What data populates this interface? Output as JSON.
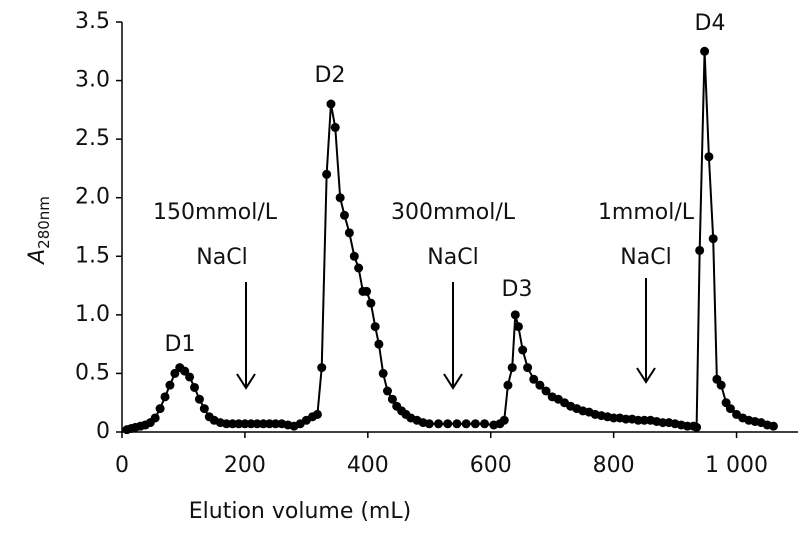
{
  "chart_data": {
    "type": "line",
    "x_label": "Elution volume (mL)",
    "y_label": {
      "symbol": "A",
      "subscript": "280nm"
    },
    "xlim": [
      0,
      1100
    ],
    "xticks": [
      0,
      200,
      400,
      600,
      800,
      {
        "value": 1000,
        "label": "1 000"
      }
    ],
    "ylim": [
      0,
      3.5
    ],
    "yticks": [
      0,
      0.5,
      {
        "value": 1,
        "label": "1.0"
      },
      1.5,
      {
        "value": 2,
        "label": "2.0"
      },
      2.5,
      {
        "value": 3,
        "label": "3.0"
      },
      3.5
    ],
    "color": "#000000",
    "annotations": [
      "D1",
      "D2",
      "D3",
      "D4",
      "150mmol/L",
      "NaCl",
      "300mmol/L",
      "NaCl",
      "1mmol/L",
      "NaCl"
    ],
    "x": [
      8,
      15,
      22,
      30,
      38,
      46,
      54,
      62,
      70,
      78,
      86,
      94,
      102,
      110,
      118,
      126,
      134,
      142,
      150,
      160,
      170,
      180,
      190,
      200,
      210,
      220,
      230,
      240,
      250,
      260,
      270,
      280,
      290,
      300,
      310,
      318,
      325,
      333,
      340,
      347,
      355,
      362,
      370,
      378,
      385,
      392,
      398,
      405,
      412,
      418,
      425,
      432,
      440,
      447,
      455,
      462,
      470,
      480,
      490,
      500,
      515,
      530,
      545,
      560,
      575,
      590,
      605,
      615,
      622,
      628,
      635,
      640,
      645,
      652,
      660,
      670,
      680,
      690,
      700,
      710,
      720,
      730,
      740,
      750,
      760,
      770,
      780,
      790,
      800,
      810,
      820,
      830,
      840,
      850,
      860,
      870,
      880,
      890,
      900,
      910,
      920,
      930,
      935,
      940,
      948,
      955,
      962,
      968,
      975,
      983,
      990,
      1000,
      1010,
      1020,
      1030,
      1040,
      1050,
      1060
    ],
    "values": [
      0.02,
      0.03,
      0.04,
      0.05,
      0.06,
      0.08,
      0.12,
      0.2,
      0.3,
      0.4,
      0.5,
      0.55,
      0.52,
      0.47,
      0.38,
      0.28,
      0.2,
      0.13,
      0.1,
      0.08,
      0.07,
      0.07,
      0.07,
      0.07,
      0.07,
      0.07,
      0.07,
      0.07,
      0.07,
      0.07,
      0.06,
      0.05,
      0.07,
      0.1,
      0.13,
      0.15,
      0.55,
      2.2,
      2.8,
      2.6,
      2.0,
      1.85,
      1.7,
      1.5,
      1.4,
      1.2,
      1.2,
      1.1,
      0.9,
      0.75,
      0.5,
      0.35,
      0.28,
      0.22,
      0.18,
      0.15,
      0.12,
      0.1,
      0.08,
      0.07,
      0.07,
      0.07,
      0.07,
      0.07,
      0.07,
      0.07,
      0.06,
      0.07,
      0.1,
      0.4,
      0.55,
      1.0,
      0.9,
      0.7,
      0.55,
      0.45,
      0.4,
      0.35,
      0.3,
      0.28,
      0.25,
      0.22,
      0.2,
      0.18,
      0.17,
      0.15,
      0.14,
      0.13,
      0.12,
      0.12,
      0.11,
      0.11,
      0.1,
      0.1,
      0.1,
      0.09,
      0.08,
      0.08,
      0.07,
      0.06,
      0.05,
      0.05,
      0.04,
      1.55,
      3.25,
      2.35,
      1.65,
      0.45,
      0.4,
      0.25,
      0.2,
      0.15,
      0.12,
      0.1,
      0.09,
      0.08,
      0.06,
      0.05
    ]
  }
}
